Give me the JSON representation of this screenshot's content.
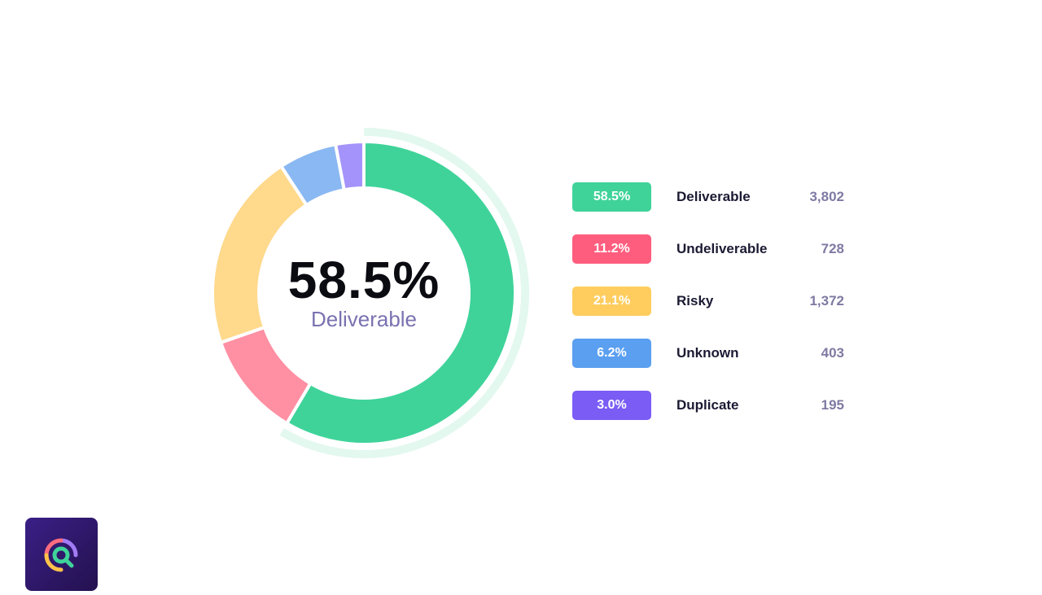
{
  "center": {
    "percent": "58.5%",
    "label": "Deliverable"
  },
  "legend": [
    {
      "percent": "58.5%",
      "label": "Deliverable",
      "count": "3,802",
      "color": "#3fd39a"
    },
    {
      "percent": "11.2%",
      "label": "Undeliverable",
      "count": "728",
      "color": "#ff5d7e"
    },
    {
      "percent": "21.1%",
      "label": "Risky",
      "count": "1,372",
      "color": "#ffcd5e"
    },
    {
      "percent": "6.2%",
      "label": "Unknown",
      "count": "403",
      "color": "#5a9ff0"
    },
    {
      "percent": "3.0%",
      "label": "Duplicate",
      "count": "195",
      "color": "#7b5cf5"
    }
  ],
  "chart_data": {
    "type": "pie",
    "title": "",
    "center_text": "58.5% Deliverable",
    "categories": [
      "Deliverable",
      "Undeliverable",
      "Risky",
      "Unknown",
      "Duplicate"
    ],
    "values": [
      58.5,
      11.2,
      21.1,
      6.2,
      3.0
    ],
    "counts": [
      3802,
      728,
      1372,
      403,
      195
    ],
    "colors": [
      "#3fd39a",
      "#ff8fa3",
      "#ffd98c",
      "#8ab8f2",
      "#a393fb"
    ],
    "donut": true,
    "highlighted": "Deliverable",
    "legend_position": "right"
  }
}
